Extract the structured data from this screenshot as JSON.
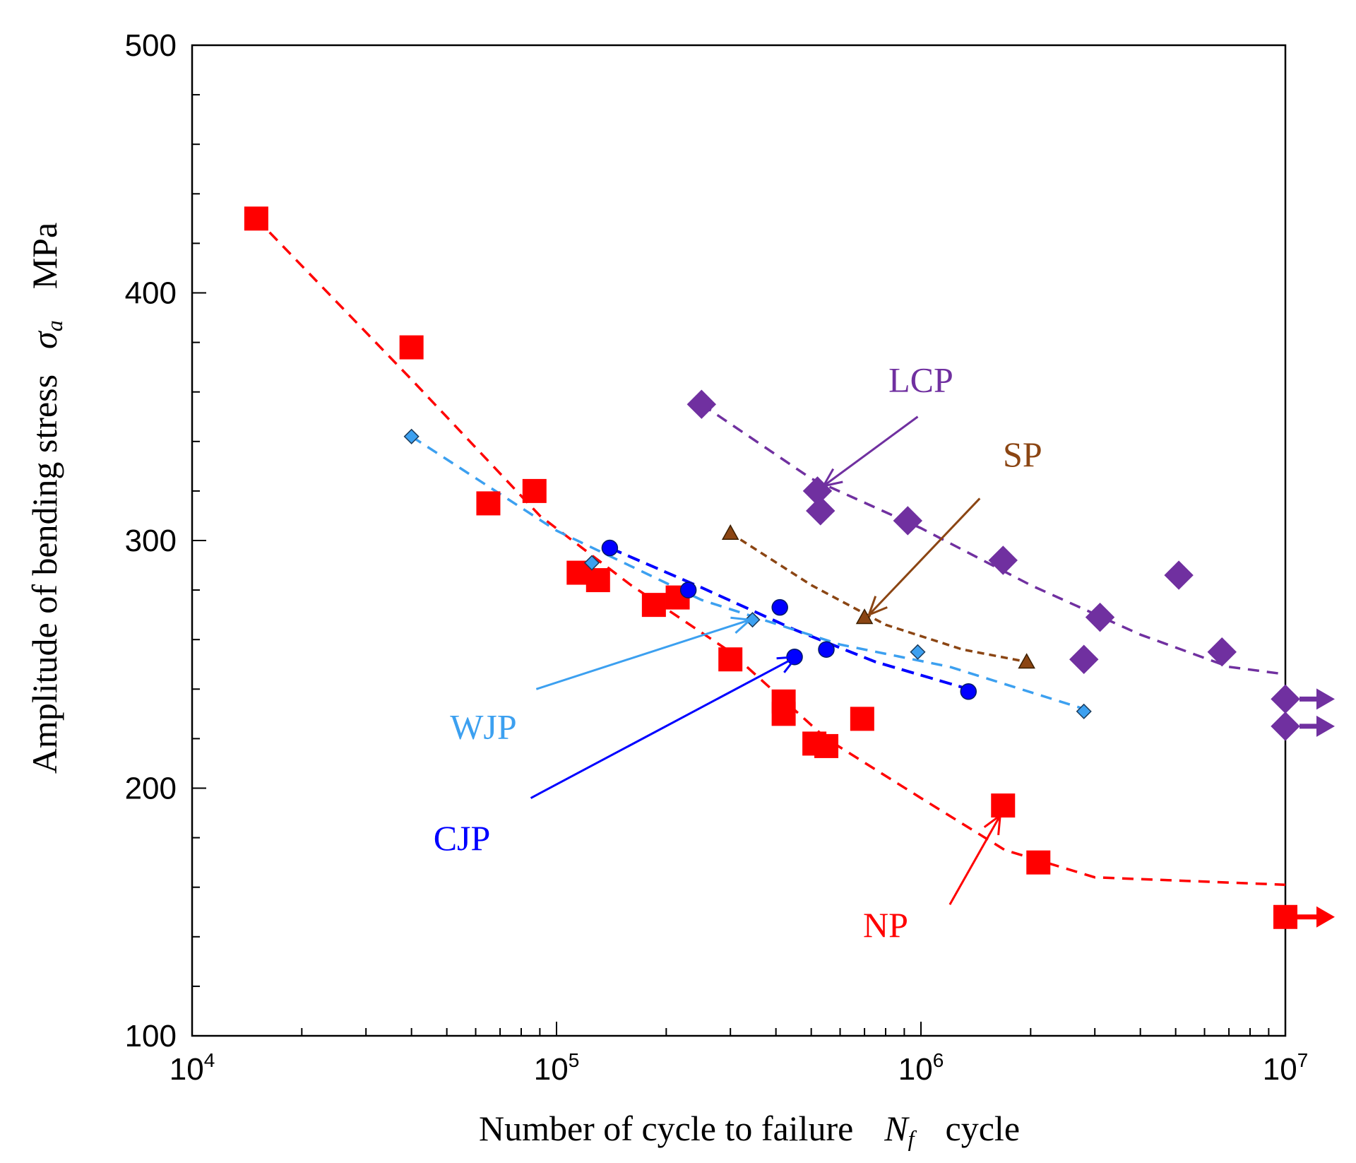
{
  "chart_data": {
    "type": "scatter",
    "title": "",
    "xlabel": {
      "text": "Number of cycle to failure",
      "symbol": "N",
      "subscript": "f",
      "unit": "cycle"
    },
    "ylabel": {
      "text": "Amplitude of bending stress",
      "symbol": "σ",
      "subscript": "a",
      "unit": "MPa"
    },
    "xscale": "log",
    "xlim": [
      10000,
      10000000
    ],
    "ylim": [
      100,
      500
    ],
    "xticks": [
      {
        "value": 10000,
        "base": "10",
        "exp": "4"
      },
      {
        "value": 100000,
        "base": "10",
        "exp": "5"
      },
      {
        "value": 1000000,
        "base": "10",
        "exp": "6"
      },
      {
        "value": 10000000,
        "base": "10",
        "exp": "7"
      }
    ],
    "yticks": [
      "100",
      "200",
      "300",
      "400",
      "500"
    ],
    "yticks_values": [
      100,
      200,
      300,
      400,
      500
    ],
    "series": [
      {
        "name": "NP",
        "color": "#ff0000",
        "marker": "square",
        "points": [
          [
            15000,
            430
          ],
          [
            40000,
            378
          ],
          [
            65000,
            315
          ],
          [
            87000,
            320
          ],
          [
            115000,
            287
          ],
          [
            130000,
            284
          ],
          [
            185000,
            274
          ],
          [
            215000,
            277
          ],
          [
            300000,
            252
          ],
          [
            420000,
            235
          ],
          [
            420000,
            230
          ],
          [
            510000,
            218
          ],
          [
            550000,
            217
          ],
          [
            690000,
            228
          ],
          [
            1680000,
            193
          ],
          [
            2100000,
            170
          ]
        ],
        "runouts": [
          [
            10000000,
            148
          ]
        ],
        "trend": [
          [
            15000,
            430
          ],
          [
            40000,
            365
          ],
          [
            90000,
            310
          ],
          [
            160000,
            282
          ],
          [
            300000,
            255
          ],
          [
            550000,
            220
          ],
          [
            1000000,
            196
          ],
          [
            1700000,
            175
          ],
          [
            3000000,
            164
          ],
          [
            10000000,
            161
          ]
        ],
        "label_pos": [
          800000,
          140
        ],
        "arrow_from": [
          1200000,
          153
        ],
        "arrow_to": [
          1650000,
          189
        ]
      },
      {
        "name": "CJP",
        "color": "#0000ff",
        "marker": "circle",
        "points": [
          [
            140000,
            297
          ],
          [
            230000,
            280
          ],
          [
            410000,
            273
          ],
          [
            450000,
            253
          ],
          [
            550000,
            256
          ],
          [
            1350000,
            239
          ]
        ],
        "runouts": [],
        "trend": [
          [
            140000,
            297
          ],
          [
            250000,
            281
          ],
          [
            450000,
            264
          ],
          [
            750000,
            251
          ],
          [
            1350000,
            240
          ]
        ],
        "label_pos": [
          55000,
          175
        ],
        "arrow_from": [
          85000,
          196
        ],
        "arrow_to": [
          455000,
          253
        ]
      },
      {
        "name": "WJP",
        "color": "#3ca0f0",
        "marker": "diamond",
        "points": [
          [
            40000,
            342
          ],
          [
            125000,
            291
          ],
          [
            345000,
            268
          ],
          [
            980000,
            255
          ],
          [
            2800000,
            231
          ]
        ],
        "runouts": [],
        "trend": [
          [
            40000,
            342
          ],
          [
            100000,
            304
          ],
          [
            250000,
            276
          ],
          [
            600000,
            258
          ],
          [
            1200000,
            249
          ],
          [
            2800000,
            232
          ]
        ],
        "label_pos": [
          63000,
          220
        ],
        "arrow_from": [
          88000,
          240
        ],
        "arrow_to": [
          340000,
          268
        ]
      },
      {
        "name": "SP",
        "color": "#8b4513",
        "marker": "triangle",
        "points": [
          [
            300000,
            303
          ],
          [
            700000,
            269
          ],
          [
            1950000,
            251
          ]
        ],
        "runouts": [],
        "trend": [
          [
            300000,
            303
          ],
          [
            500000,
            282
          ],
          [
            800000,
            266
          ],
          [
            1300000,
            256
          ],
          [
            1950000,
            251
          ]
        ],
        "label_pos": [
          1900000,
          330
        ],
        "arrow_from": [
          1450000,
          317
        ],
        "arrow_to": [
          720000,
          270
        ]
      },
      {
        "name": "LCP",
        "color": "#7030a0",
        "marker": "diamond",
        "points": [
          [
            250000,
            355
          ],
          [
            520000,
            320
          ],
          [
            530000,
            312
          ],
          [
            920000,
            308
          ],
          [
            1680000,
            292
          ],
          [
            2800000,
            252
          ],
          [
            3100000,
            269
          ],
          [
            5100000,
            286
          ],
          [
            6700000,
            255
          ]
        ],
        "runouts": [
          [
            10000000,
            236
          ],
          [
            10000000,
            225
          ]
        ],
        "trend": [
          [
            250000,
            355
          ],
          [
            500000,
            325
          ],
          [
            1000000,
            305
          ],
          [
            2000000,
            282
          ],
          [
            4000000,
            262
          ],
          [
            7000000,
            249
          ],
          [
            10000000,
            246
          ]
        ],
        "label_pos": [
          1000000,
          360
        ],
        "arrow_from": [
          980000,
          350
        ],
        "arrow_to": [
          540000,
          322
        ]
      }
    ]
  }
}
